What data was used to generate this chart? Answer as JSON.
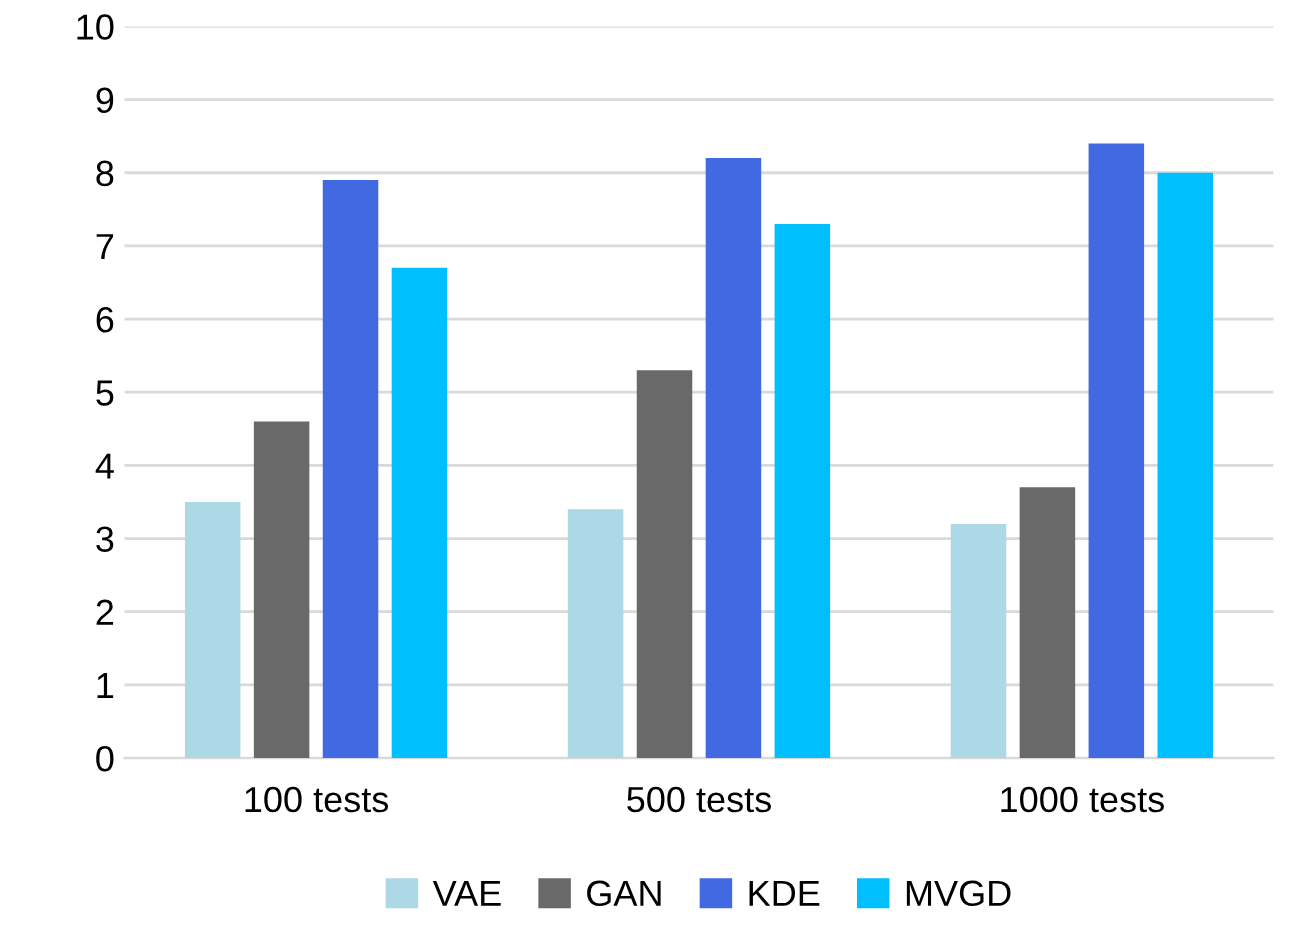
{
  "chart_data": {
    "type": "bar",
    "categories": [
      "100 tests",
      "500 tests",
      "1000 tests"
    ],
    "series": [
      {
        "name": "VAE",
        "color": "#add8e6",
        "values": [
          3.5,
          3.4,
          3.2
        ]
      },
      {
        "name": "GAN",
        "color": "#696969",
        "values": [
          4.6,
          5.3,
          3.7
        ]
      },
      {
        "name": "KDE",
        "color": "#4169e1",
        "values": [
          7.9,
          8.2,
          8.4
        ]
      },
      {
        "name": "MVGD",
        "color": "#00bfff",
        "values": [
          6.7,
          7.3,
          8.0
        ]
      }
    ],
    "ylim": [
      0,
      10
    ],
    "yticks": [
      0,
      1,
      2,
      3,
      4,
      5,
      6,
      7,
      8,
      9,
      10
    ],
    "grid": "y",
    "legend": "bottom"
  }
}
